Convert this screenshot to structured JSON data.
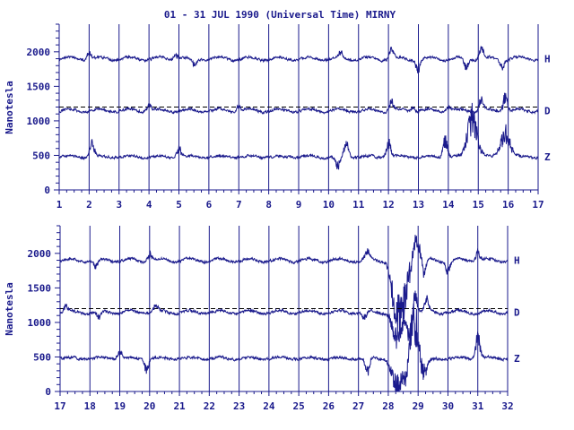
{
  "title": "01 - 31 JUL 1990 (Universal Time) MIRNY",
  "colors": {
    "ink": "#1a1a8c",
    "background": "#ffffff",
    "baseline": "#000000"
  },
  "chart_data": [
    {
      "type": "line",
      "panel": "top",
      "x": [
        1,
        17
      ],
      "xticks": [
        "1",
        "2",
        "3",
        "4",
        "5",
        "6",
        "7",
        "8",
        "9",
        "10",
        "11",
        "12",
        "13",
        "14",
        "15",
        "16",
        "17"
      ],
      "ylabel": "Nanotesla",
      "ylim": [
        0,
        2400
      ],
      "yticks": [
        "0",
        "500",
        "1000",
        "1500",
        "2000"
      ],
      "grid": "vertical at day boundaries",
      "series": [
        {
          "name": "H",
          "baseline": 1900,
          "disturbances": [
            [
              2.0,
              80
            ],
            [
              4.9,
              70
            ],
            [
              5.5,
              -100
            ],
            [
              10.4,
              70
            ],
            [
              12.1,
              130
            ],
            [
              13.0,
              -150
            ],
            [
              14.6,
              -120
            ],
            [
              15.1,
              140
            ],
            [
              15.8,
              -100
            ]
          ]
        },
        {
          "name": "D",
          "baseline": 1150,
          "reference": 1200,
          "disturbances": [
            [
              4.0,
              80
            ],
            [
              7.0,
              60
            ],
            [
              12.1,
              120
            ],
            [
              12.8,
              60
            ],
            [
              14.0,
              60
            ],
            [
              15.1,
              150
            ],
            [
              15.9,
              220
            ]
          ]
        },
        {
          "name": "Z",
          "baseline": 480,
          "disturbances": [
            [
              2.1,
              200
            ],
            [
              5.0,
              120
            ],
            [
              10.3,
              -150
            ],
            [
              10.6,
              180
            ],
            [
              12.0,
              200
            ],
            [
              13.9,
              230
            ],
            [
              14.8,
              550
            ],
            [
              15.9,
              330
            ]
          ]
        }
      ]
    },
    {
      "type": "line",
      "panel": "bottom",
      "x": [
        17,
        32
      ],
      "xticks": [
        "17",
        "18",
        "19",
        "20",
        "21",
        "22",
        "23",
        "24",
        "25",
        "26",
        "27",
        "28",
        "29",
        "30",
        "31",
        "32"
      ],
      "ylabel": "Nanotesla",
      "ylim": [
        0,
        2400
      ],
      "yticks": [
        "0",
        "500",
        "1000",
        "1500",
        "2000"
      ],
      "grid": "vertical at day boundaries",
      "series": [
        {
          "name": "H",
          "baseline": 1900,
          "disturbances": [
            [
              18.2,
              -100
            ],
            [
              20.0,
              100
            ],
            [
              27.3,
              100
            ],
            [
              28.3,
              -800
            ],
            [
              28.6,
              -400
            ],
            [
              28.9,
              330
            ],
            [
              29.2,
              -250
            ],
            [
              30.0,
              -150
            ],
            [
              31.0,
              120
            ]
          ]
        },
        {
          "name": "D",
          "baseline": 1150,
          "reference": 1200,
          "disturbances": [
            [
              17.2,
              80
            ],
            [
              18.3,
              -100
            ],
            [
              20.2,
              80
            ],
            [
              27.2,
              -100
            ],
            [
              28.3,
              -400
            ],
            [
              28.7,
              -300
            ],
            [
              28.9,
              250
            ],
            [
              29.3,
              150
            ]
          ]
        },
        {
          "name": "Z",
          "baseline": 480,
          "disturbances": [
            [
              19.0,
              100
            ],
            [
              19.9,
              -150
            ],
            [
              27.3,
              -200
            ],
            [
              28.3,
              -450
            ],
            [
              28.6,
              -300
            ],
            [
              28.9,
              650
            ],
            [
              29.1,
              -350
            ],
            [
              31.0,
              280
            ]
          ]
        }
      ]
    }
  ]
}
